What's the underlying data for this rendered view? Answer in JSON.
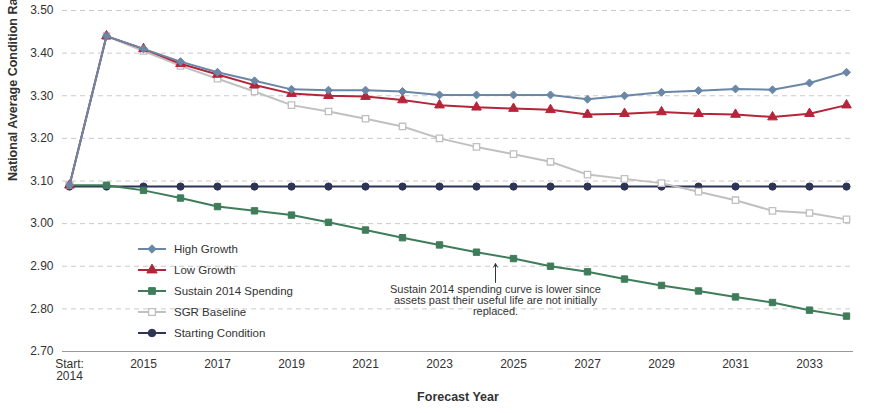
{
  "chart_data": {
    "type": "line",
    "x_label": "Forecast Year",
    "y_label": "National Average Condition Rating",
    "categories": [
      "Start:\n2014",
      null,
      "2015",
      null,
      "2017",
      null,
      "2019",
      null,
      "2021",
      null,
      "2023",
      null,
      "2025",
      null,
      "2027",
      null,
      "2029",
      null,
      "2031",
      null,
      "2033",
      null
    ],
    "series": [
      {
        "name": "High Growth",
        "color": "#6a87a8",
        "marker": "diamond",
        "line_style": "solid",
        "values": [
          3.09,
          3.44,
          3.41,
          3.38,
          3.355,
          3.335,
          3.315,
          3.313,
          3.313,
          3.31,
          3.302,
          3.302,
          3.302,
          3.302,
          3.292,
          3.3,
          3.308,
          3.312,
          3.316,
          3.314,
          3.33,
          3.355
        ]
      },
      {
        "name": "Low Growth",
        "color": "#b5253a",
        "marker": "triangle",
        "line_style": "solid",
        "values": [
          3.09,
          3.44,
          3.41,
          3.375,
          3.35,
          3.325,
          3.305,
          3.3,
          3.298,
          3.29,
          3.278,
          3.273,
          3.27,
          3.267,
          3.256,
          3.258,
          3.262,
          3.258,
          3.256,
          3.25,
          3.258,
          3.278
        ]
      },
      {
        "name": "Sustain 2014 Spending",
        "color": "#3f7d5a",
        "marker": "square",
        "line_style": "solid",
        "values": [
          3.09,
          3.09,
          3.078,
          3.06,
          3.04,
          3.03,
          3.02,
          3.003,
          2.985,
          2.967,
          2.95,
          2.933,
          2.918,
          2.9,
          2.887,
          2.87,
          2.855,
          2.842,
          2.828,
          2.815,
          2.797,
          2.783
        ]
      },
      {
        "name": "SGR Baseline",
        "color": "#c0c0c0",
        "marker": "hollow-square",
        "line_style": "solid",
        "values": [
          3.09,
          3.44,
          3.405,
          3.37,
          3.34,
          3.31,
          3.278,
          3.263,
          3.246,
          3.228,
          3.2,
          3.18,
          3.163,
          3.145,
          3.115,
          3.105,
          3.095,
          3.075,
          3.055,
          3.03,
          3.025,
          3.01
        ]
      },
      {
        "name": "Starting Condition",
        "color": "#2e3456",
        "marker": "circle",
        "line_style": "solid",
        "values": [
          3.087,
          3.087,
          3.087,
          3.087,
          3.087,
          3.087,
          3.087,
          3.087,
          3.087,
          3.087,
          3.087,
          3.087,
          3.087,
          3.087,
          3.087,
          3.087,
          3.087,
          3.087,
          3.087,
          3.087,
          3.087,
          3.087
        ]
      }
    ],
    "ylim": [
      2.7,
      3.5
    ],
    "yticks": [
      {
        "value": 2.7,
        "label": "2.70"
      },
      {
        "value": 2.8,
        "label": "2.80"
      },
      {
        "value": 2.9,
        "label": "2.90"
      },
      {
        "value": 3,
        "label": "3.00"
      },
      {
        "value": 3.1,
        "label": "3.10"
      },
      {
        "value": 3.2,
        "label": "3.20"
      },
      {
        "value": 3.3,
        "label": "3.30"
      },
      {
        "value": 3.4,
        "label": "3.40"
      },
      {
        "value": 3.5,
        "label": "3.50"
      }
    ],
    "grid": true,
    "legend": "bottom-left",
    "annotations": [
      "Sustain 2014 spending curve is lower since\nassets past their useful life are not initially\nreplaced."
    ]
  }
}
